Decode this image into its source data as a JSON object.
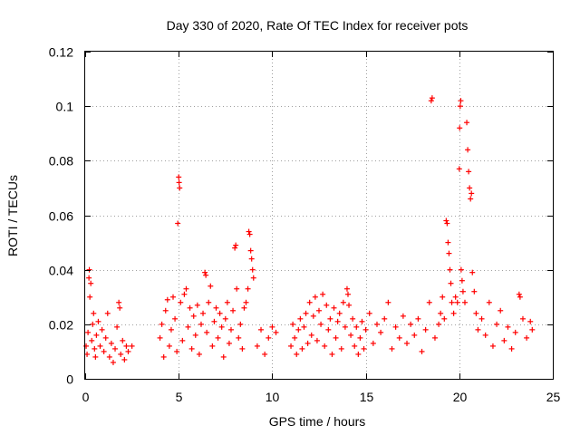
{
  "chart_data": {
    "type": "scatter",
    "title": "Day 330 of 2020, Rate Of TEC Index for receiver pots",
    "xlabel": "GPS time / hours",
    "ylabel": "ROTI / TECUs",
    "xlim": [
      0,
      25
    ],
    "ylim": [
      0,
      0.12
    ],
    "xticks": [
      0,
      5,
      10,
      15,
      20,
      25
    ],
    "xtick_labels": [
      "0",
      "5",
      "10",
      "15",
      "20",
      "25"
    ],
    "yticks": [
      0,
      0.02,
      0.04,
      0.06,
      0.08,
      0.1,
      0.12
    ],
    "ytick_labels": [
      "0",
      "0.02",
      "0.04",
      "0.06",
      "0.08",
      "0.1",
      "0.12"
    ],
    "grid": true,
    "marker": "+",
    "color": "#ff0000",
    "series": [
      {
        "name": "ROTI",
        "points": [
          [
            0.05,
            0.012
          ],
          [
            0.1,
            0.009
          ],
          [
            0.15,
            0.017
          ],
          [
            0.2,
            0.037
          ],
          [
            0.22,
            0.04
          ],
          [
            0.25,
            0.03
          ],
          [
            0.3,
            0.035
          ],
          [
            0.35,
            0.014
          ],
          [
            0.4,
            0.02
          ],
          [
            0.45,
            0.024
          ],
          [
            0.5,
            0.011
          ],
          [
            0.55,
            0.008
          ],
          [
            0.6,
            0.016
          ],
          [
            0.7,
            0.021
          ],
          [
            0.8,
            0.012
          ],
          [
            0.9,
            0.018
          ],
          [
            1.0,
            0.01
          ],
          [
            1.1,
            0.015
          ],
          [
            1.2,
            0.024
          ],
          [
            1.3,
            0.008
          ],
          [
            1.4,
            0.013
          ],
          [
            1.5,
            0.006
          ],
          [
            1.6,
            0.011
          ],
          [
            1.7,
            0.019
          ],
          [
            1.8,
            0.028
          ],
          [
            1.85,
            0.026
          ],
          [
            1.9,
            0.009
          ],
          [
            2.0,
            0.014
          ],
          [
            2.1,
            0.007
          ],
          [
            2.2,
            0.012
          ],
          [
            2.3,
            0.01
          ],
          [
            2.5,
            0.012
          ],
          [
            4.0,
            0.015
          ],
          [
            4.1,
            0.02
          ],
          [
            4.2,
            0.008
          ],
          [
            4.3,
            0.025
          ],
          [
            4.4,
            0.029
          ],
          [
            4.5,
            0.012
          ],
          [
            4.6,
            0.018
          ],
          [
            4.7,
            0.03
          ],
          [
            4.8,
            0.022
          ],
          [
            4.9,
            0.01
          ],
          [
            4.95,
            0.057
          ],
          [
            5.0,
            0.074
          ],
          [
            5.02,
            0.072
          ],
          [
            5.05,
            0.07
          ],
          [
            5.1,
            0.028
          ],
          [
            5.2,
            0.014
          ],
          [
            5.3,
            0.031
          ],
          [
            5.4,
            0.033
          ],
          [
            5.5,
            0.019
          ],
          [
            5.6,
            0.026
          ],
          [
            5.7,
            0.011
          ],
          [
            5.8,
            0.023
          ],
          [
            5.9,
            0.016
          ],
          [
            6.0,
            0.027
          ],
          [
            6.1,
            0.009
          ],
          [
            6.2,
            0.02
          ],
          [
            6.3,
            0.024
          ],
          [
            6.4,
            0.039
          ],
          [
            6.45,
            0.038
          ],
          [
            6.5,
            0.017
          ],
          [
            6.6,
            0.028
          ],
          [
            6.7,
            0.034
          ],
          [
            6.8,
            0.012
          ],
          [
            6.9,
            0.021
          ],
          [
            7.0,
            0.026
          ],
          [
            7.1,
            0.015
          ],
          [
            7.2,
            0.024
          ],
          [
            7.3,
            0.019
          ],
          [
            7.4,
            0.008
          ],
          [
            7.5,
            0.022
          ],
          [
            7.6,
            0.028
          ],
          [
            7.7,
            0.013
          ],
          [
            7.8,
            0.018
          ],
          [
            7.9,
            0.025
          ],
          [
            8.0,
            0.048
          ],
          [
            8.05,
            0.049
          ],
          [
            8.1,
            0.033
          ],
          [
            8.2,
            0.015
          ],
          [
            8.3,
            0.02
          ],
          [
            8.4,
            0.011
          ],
          [
            8.5,
            0.026
          ],
          [
            8.6,
            0.028
          ],
          [
            8.7,
            0.033
          ],
          [
            8.75,
            0.054
          ],
          [
            8.8,
            0.053
          ],
          [
            8.85,
            0.047
          ],
          [
            8.9,
            0.044
          ],
          [
            8.95,
            0.04
          ],
          [
            9.0,
            0.037
          ],
          [
            9.2,
            0.012
          ],
          [
            9.4,
            0.018
          ],
          [
            9.6,
            0.009
          ],
          [
            9.8,
            0.015
          ],
          [
            10.0,
            0.019
          ],
          [
            10.2,
            0.017
          ],
          [
            11.0,
            0.012
          ],
          [
            11.1,
            0.02
          ],
          [
            11.2,
            0.015
          ],
          [
            11.3,
            0.009
          ],
          [
            11.4,
            0.018
          ],
          [
            11.5,
            0.022
          ],
          [
            11.6,
            0.011
          ],
          [
            11.7,
            0.019
          ],
          [
            11.8,
            0.024
          ],
          [
            11.9,
            0.013
          ],
          [
            12.0,
            0.028
          ],
          [
            12.1,
            0.016
          ],
          [
            12.2,
            0.023
          ],
          [
            12.3,
            0.03
          ],
          [
            12.4,
            0.014
          ],
          [
            12.5,
            0.025
          ],
          [
            12.6,
            0.02
          ],
          [
            12.7,
            0.031
          ],
          [
            12.8,
            0.012
          ],
          [
            12.9,
            0.027
          ],
          [
            13.0,
            0.018
          ],
          [
            13.1,
            0.022
          ],
          [
            13.2,
            0.009
          ],
          [
            13.3,
            0.026
          ],
          [
            13.4,
            0.015
          ],
          [
            13.5,
            0.021
          ],
          [
            13.6,
            0.024
          ],
          [
            13.7,
            0.011
          ],
          [
            13.8,
            0.028
          ],
          [
            13.9,
            0.019
          ],
          [
            14.0,
            0.033
          ],
          [
            14.05,
            0.031
          ],
          [
            14.1,
            0.027
          ],
          [
            14.2,
            0.016
          ],
          [
            14.3,
            0.022
          ],
          [
            14.4,
            0.012
          ],
          [
            14.5,
            0.019
          ],
          [
            14.6,
            0.009
          ],
          [
            14.7,
            0.015
          ],
          [
            14.8,
            0.021
          ],
          [
            14.9,
            0.011
          ],
          [
            15.0,
            0.018
          ],
          [
            15.2,
            0.024
          ],
          [
            15.4,
            0.013
          ],
          [
            15.6,
            0.02
          ],
          [
            15.8,
            0.017
          ],
          [
            16.0,
            0.022
          ],
          [
            16.2,
            0.028
          ],
          [
            16.4,
            0.011
          ],
          [
            16.6,
            0.019
          ],
          [
            16.8,
            0.015
          ],
          [
            17.0,
            0.023
          ],
          [
            17.2,
            0.013
          ],
          [
            17.4,
            0.02
          ],
          [
            17.6,
            0.016
          ],
          [
            17.8,
            0.022
          ],
          [
            18.0,
            0.01
          ],
          [
            18.2,
            0.018
          ],
          [
            18.4,
            0.028
          ],
          [
            18.5,
            0.102
          ],
          [
            18.55,
            0.103
          ],
          [
            18.7,
            0.015
          ],
          [
            18.9,
            0.02
          ],
          [
            19.0,
            0.024
          ],
          [
            19.1,
            0.03
          ],
          [
            19.2,
            0.022
          ],
          [
            19.3,
            0.058
          ],
          [
            19.35,
            0.057
          ],
          [
            19.4,
            0.05
          ],
          [
            19.45,
            0.046
          ],
          [
            19.5,
            0.04
          ],
          [
            19.55,
            0.035
          ],
          [
            19.6,
            0.028
          ],
          [
            19.7,
            0.024
          ],
          [
            19.8,
            0.03
          ],
          [
            19.9,
            0.028
          ],
          [
            20.0,
            0.077
          ],
          [
            20.02,
            0.092
          ],
          [
            20.05,
            0.1
          ],
          [
            20.08,
            0.102
          ],
          [
            20.1,
            0.04
          ],
          [
            20.15,
            0.036
          ],
          [
            20.2,
            0.032
          ],
          [
            20.3,
            0.028
          ],
          [
            20.4,
            0.094
          ],
          [
            20.45,
            0.084
          ],
          [
            20.5,
            0.076
          ],
          [
            20.55,
            0.07
          ],
          [
            20.6,
            0.066
          ],
          [
            20.65,
            0.068
          ],
          [
            20.7,
            0.039
          ],
          [
            20.8,
            0.032
          ],
          [
            20.9,
            0.024
          ],
          [
            21.0,
            0.018
          ],
          [
            21.2,
            0.022
          ],
          [
            21.4,
            0.016
          ],
          [
            21.6,
            0.028
          ],
          [
            21.8,
            0.012
          ],
          [
            22.0,
            0.02
          ],
          [
            22.2,
            0.025
          ],
          [
            22.4,
            0.014
          ],
          [
            22.6,
            0.019
          ],
          [
            22.8,
            0.011
          ],
          [
            23.0,
            0.017
          ],
          [
            23.2,
            0.031
          ],
          [
            23.25,
            0.03
          ],
          [
            23.4,
            0.022
          ],
          [
            23.6,
            0.015
          ],
          [
            23.8,
            0.021
          ],
          [
            23.9,
            0.018
          ]
        ]
      }
    ]
  }
}
